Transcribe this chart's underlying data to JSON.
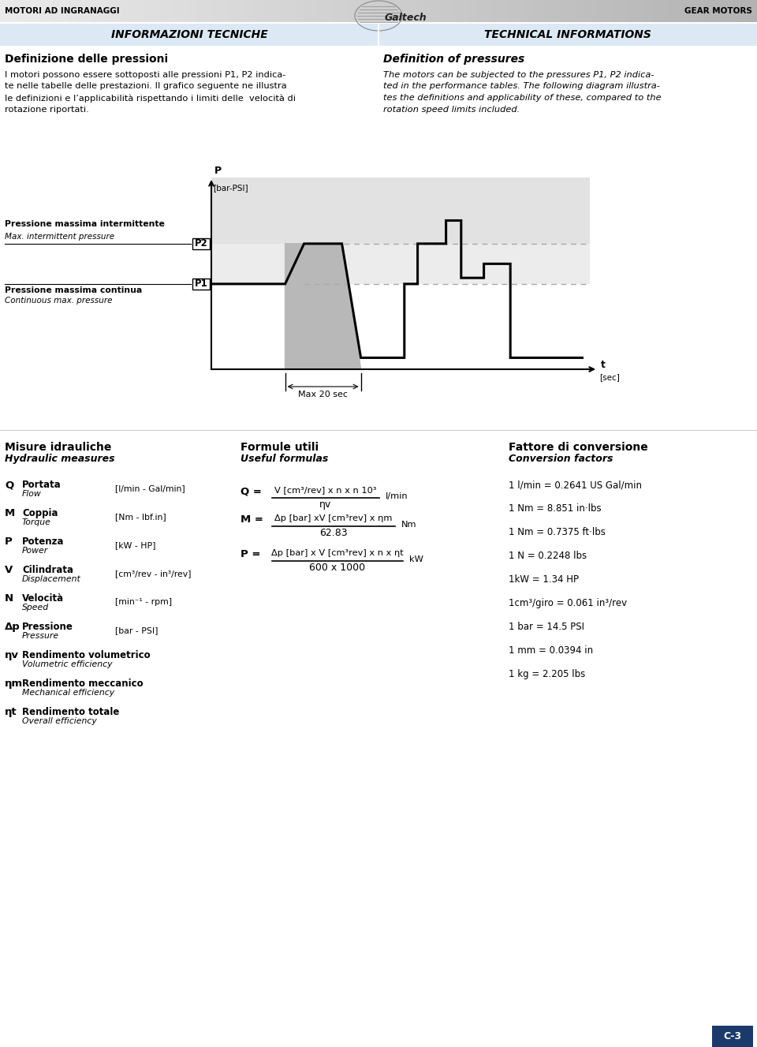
{
  "header_left": "MOTORI AD INGRANAGGI",
  "header_right": "GEAR MOTORS",
  "section_left": "INFORMAZIONI TECNICHE",
  "section_right": "TECHNICAL INFORMATIONS",
  "section_bg": "#dce9f5",
  "title_left": "Definizione delle pressioni",
  "title_right": "Definition of pressures",
  "body_left_lines": [
    "I motori possono essere sottoposti alle pressioni P1, P2 indica-",
    "te nelle tabelle delle prestazioni. Il grafico seguente ne illustra",
    "le definizioni e l’applicabilità rispettando i limiti delle  velocità di",
    "rotazione riportati."
  ],
  "body_right_lines": [
    "The motors can be subjected to the pressures P1, P2 indica-",
    "ted in the performance tables. The following diagram illustra-",
    "tes the definitions and applicability of these, compared to the",
    "rotation speed limits included."
  ],
  "label_p2_it": "Pressione massima intermittente",
  "label_p2_en": "Max. intermittent pressure",
  "label_p1_it": "Pressione massima continua",
  "label_p1_en": "Continuous max. pressure",
  "max_20_sec": "Max 20 sec",
  "p2_label": "P2",
  "p1_label": "P1",
  "section_hydraulic": "Misure idrauliche",
  "section_hydraulic_en": "Hydraulic measures",
  "section_formulas": "Formule utili",
  "section_formulas_en": "Useful formulas",
  "section_conversion": "Fattore di conversione",
  "section_conversion_en": "Conversion factors",
  "measures": [
    {
      "sym": "Q",
      "it": "Portata",
      "en": "Flow",
      "unit": "[l/min - Gal/min]",
      "unit_style": "mixed"
    },
    {
      "sym": "M",
      "it": "Coppia",
      "en": "Torque",
      "unit": "[Nm - lbf.in]",
      "unit_style": "mixed"
    },
    {
      "sym": "P",
      "it": "Potenza",
      "en": "Power",
      "unit": "[kW - HP]",
      "unit_style": "mixed"
    },
    {
      "sym": "V",
      "it": "Cilindrata",
      "en": "Displacement",
      "unit": "[cm³/rev - in³/rev]",
      "unit_style": "mixed"
    },
    {
      "sym": "N",
      "it": "Velocità",
      "en": "Speed",
      "unit": "[min⁻¹ - rpm]",
      "unit_style": "mixed"
    },
    {
      "sym": "Δp",
      "it": "Pressione",
      "en": "Pressure",
      "unit": "[bar - PSI]",
      "unit_style": "normal"
    },
    {
      "sym": "ηv",
      "it": "Rendimento volumetrico",
      "en": "Volumetric efficiency",
      "unit": "",
      "unit_style": ""
    },
    {
      "sym": "ηm",
      "it": "Rendimento meccanico",
      "en": "Mechanical efficiency",
      "unit": "",
      "unit_style": ""
    },
    {
      "sym": "ηt",
      "it": "Rendimento totale",
      "en": "Overall efficiency",
      "unit": "",
      "unit_style": ""
    }
  ],
  "conversions": [
    "1 l/min = 0.2641 US Gal/min",
    "1 Nm = 8.851 in·lbs",
    "1 Nm = 0.7375 ft·lbs",
    "1 N = 0.2248 lbs",
    "1kW = 1.34 HP",
    "1cm³/giro = 0.061 in³/rev",
    "1 bar = 14.5 PSI",
    "1 mm = 0.0394 in",
    "1 kg = 2.205 lbs"
  ],
  "footer_label": "C-3",
  "footer_bg": "#1a3a6b"
}
